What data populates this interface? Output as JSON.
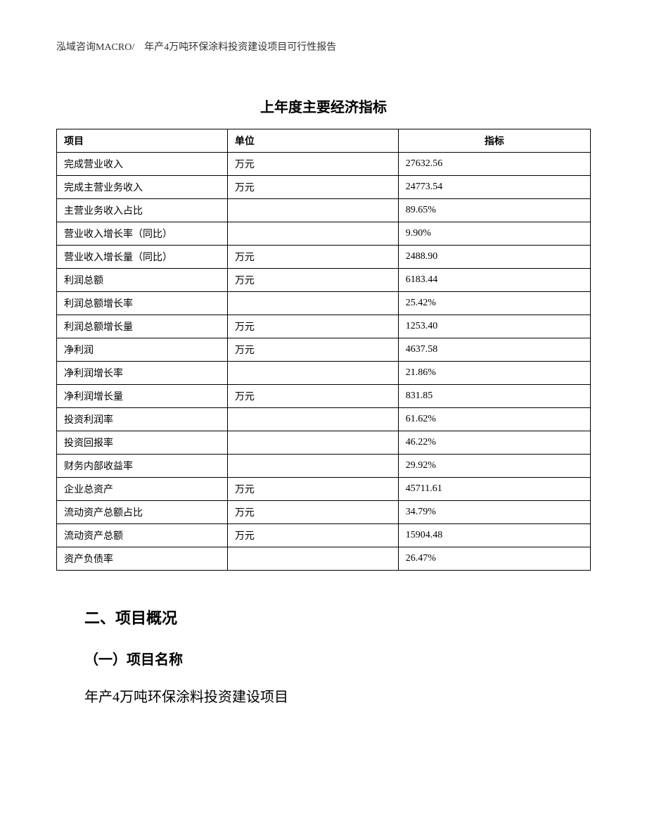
{
  "header": {
    "text": "泓域咨询MACRO/　年产4万吨环保涂料投资建设项目可行性报告"
  },
  "table": {
    "title": "上年度主要经济指标",
    "columns": [
      "项目",
      "单位",
      "指标"
    ],
    "rows": [
      [
        "完成营业收入",
        "万元",
        "27632.56"
      ],
      [
        "完成主营业务收入",
        "万元",
        "24773.54"
      ],
      [
        "主营业务收入占比",
        "",
        "89.65%"
      ],
      [
        "营业收入增长率（同比）",
        "",
        "9.90%"
      ],
      [
        "营业收入增长量（同比）",
        "万元",
        "2488.90"
      ],
      [
        "利润总额",
        "万元",
        "6183.44"
      ],
      [
        "利润总额增长率",
        "",
        "25.42%"
      ],
      [
        "利润总额增长量",
        "万元",
        "1253.40"
      ],
      [
        "净利润",
        "万元",
        "4637.58"
      ],
      [
        "净利润增长率",
        "",
        "21.86%"
      ],
      [
        "净利润增长量",
        "万元",
        "831.85"
      ],
      [
        "投资利润率",
        "",
        "61.62%"
      ],
      [
        "投资回报率",
        "",
        "46.22%"
      ],
      [
        "财务内部收益率",
        "",
        "29.92%"
      ],
      [
        "企业总资产",
        "万元",
        "45711.61"
      ],
      [
        "流动资产总额占比",
        "万元",
        "34.79%"
      ],
      [
        "流动资产总额",
        "万元",
        "15904.48"
      ],
      [
        "资产负债率",
        "",
        "26.47%"
      ]
    ]
  },
  "sections": {
    "heading": "二、项目概况",
    "subheading": "（一）项目名称",
    "body": "年产4万吨环保涂料投资建设项目"
  }
}
